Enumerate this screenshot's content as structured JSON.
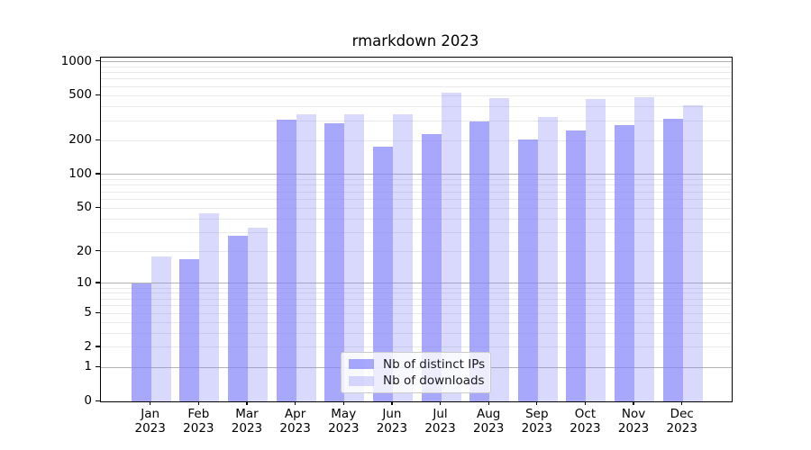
{
  "chart_data": {
    "type": "bar",
    "title": "rmarkdown 2023",
    "yscale": "log1p",
    "ylim": [
      0,
      1090
    ],
    "grid": true,
    "legend_position": "lower center",
    "year_label": "2023",
    "categories": [
      "Jan",
      "Feb",
      "Mar",
      "Apr",
      "May",
      "Jun",
      "Jul",
      "Aug",
      "Sep",
      "Oct",
      "Nov",
      "Dec"
    ],
    "series": [
      {
        "name": "Nb of distinct IPs",
        "key": "distinct-ips",
        "color": "rgba(130,130,250,0.7)",
        "values": [
          10,
          17,
          28,
          308,
          287,
          176,
          227,
          294,
          203,
          246,
          276,
          313
        ]
      },
      {
        "name": "Nb of downloads",
        "key": "downloads",
        "color": "rgba(130,130,250,0.3)",
        "values": [
          18,
          45,
          33,
          342,
          343,
          342,
          535,
          480,
          325,
          468,
          487,
          411
        ]
      }
    ],
    "yticks": [
      0,
      1,
      2,
      5,
      10,
      20,
      50,
      100,
      200,
      500,
      1000
    ],
    "gridlines_major": [
      1,
      10,
      100,
      1000
    ],
    "gridlines_minor": [
      2,
      3,
      4,
      5,
      6,
      7,
      8,
      9,
      20,
      30,
      40,
      50,
      60,
      70,
      80,
      90,
      200,
      300,
      400,
      500,
      600,
      700,
      800,
      900
    ]
  },
  "colors": {
    "series_dark": "rgba(130,130,250,0.7)",
    "series_light": "rgba(130,130,250,0.3)",
    "grid_major": "#b3b3b3",
    "grid_minor": "#e9e9e9",
    "spine": "#000000",
    "legend_border": "#cccccc"
  }
}
